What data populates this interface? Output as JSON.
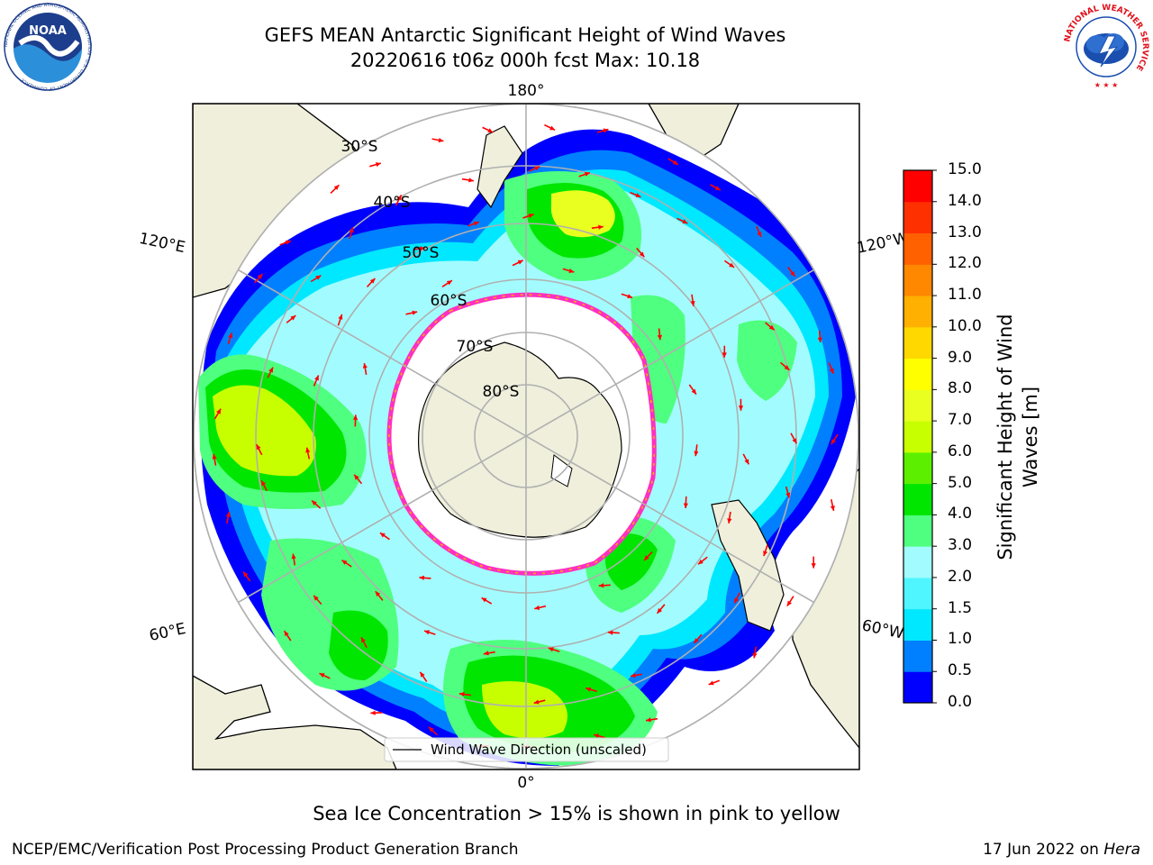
{
  "header": {
    "title_line1": "GEFS MEAN Antarctic Significant Height of Wind Waves",
    "title_line2": "20220616 t06z 000h fcst   Max: 10.18"
  },
  "map": {
    "projection": "south-polar-stereographic",
    "longitude_labels": {
      "top": "180°",
      "left_upper": "120°E",
      "right_upper": "120°W",
      "left_lower": "60°E",
      "right_lower": "60°W",
      "bottom": "0°"
    },
    "latitude_labels": [
      "30°S",
      "40°S",
      "50°S",
      "60°S",
      "70°S",
      "80°S"
    ],
    "legend_label": "Wind Wave Direction (unscaled)",
    "arrow_color": "#ff0000",
    "land_color": "#efefdc",
    "grid_color": "#b0b0b0"
  },
  "colorbar": {
    "label": "Significant Height of Wind Waves [m]",
    "tick_labels": [
      "0.0",
      "0.5",
      "1.0",
      "1.5",
      "2.0",
      "3.0",
      "4.0",
      "5.0",
      "6.0",
      "7.0",
      "8.0",
      "9.0",
      "10.0",
      "11.0",
      "12.0",
      "13.0",
      "14.0",
      "15.0"
    ],
    "colors": [
      "#0000ff",
      "#0080ff",
      "#00e8ff",
      "#4ff6ff",
      "#a2fcff",
      "#4fff7f",
      "#00e600",
      "#5cf000",
      "#c8ff00",
      "#e8ff20",
      "#ffff00",
      "#ffd800",
      "#ffb000",
      "#ff8800",
      "#ff6000",
      "#ff3000",
      "#ff0000"
    ]
  },
  "footnote": "Sea Ice Concentration > 15% is shown in pink to yellow",
  "footer": {
    "left": "NCEP/EMC/Verification Post Processing Product Generation Branch",
    "right_prefix": "17 Jun 2022 on ",
    "right_machine": "Hera"
  },
  "logos": {
    "noaa_text": "NOAA",
    "noaa_ring_text": "NATIONAL OCEANIC AND ATMOSPHERIC ADMINISTRATION · U.S. DEPARTMENT OF COMMERCE",
    "nws_ring_text": "NATIONAL WEATHER SERVICE"
  }
}
